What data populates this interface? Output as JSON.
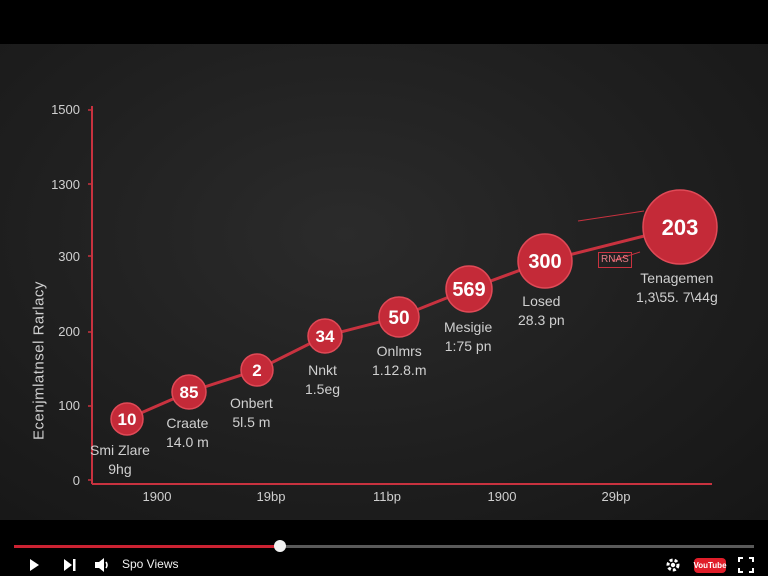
{
  "player": {
    "views_label": "Spo Views",
    "progress": 0.36,
    "logo_text": "VouTube",
    "icons": [
      "play-icon",
      "skip-icon",
      "volume-icon",
      "settings-icon",
      "fullscreen-icon"
    ]
  },
  "colors": {
    "accent": "#c8323f",
    "background": "#1f1f1f",
    "axis": "#c8323f"
  },
  "chart_data": {
    "type": "line",
    "title": "",
    "ylabel": "Ecenjmlatnsel Rarlacy",
    "xlabel": "",
    "yticks": [
      "1500",
      "1300",
      "300",
      "200",
      "100",
      "0"
    ],
    "xticks": [
      "1900",
      "19bp",
      "11bp",
      "1900",
      "29bp"
    ],
    "series": [
      {
        "values": [
          "10",
          "85",
          "2",
          "34",
          "50",
          "569",
          "300",
          "203"
        ]
      }
    ],
    "annotations": [
      {
        "line1": "Smi Zlare",
        "line2": "9hg"
      },
      {
        "line1": "Craate",
        "line2": "14.0 m"
      },
      {
        "line1": "Onbert",
        "line2": "5l.5 m"
      },
      {
        "line1": "Nnkt",
        "line2": "1.5eg"
      },
      {
        "line1": "Onlmrs",
        "line2": "1.12.8.m"
      },
      {
        "line1": "Mesigie",
        "line2": "1:75 pn"
      },
      {
        "line1": "Losed",
        "line2": "28.3 pn"
      },
      {
        "line1": "Tenagemen",
        "line2": "1,3\\55. 7\\44g"
      }
    ],
    "tag_label": "RNAS",
    "grid": false
  }
}
